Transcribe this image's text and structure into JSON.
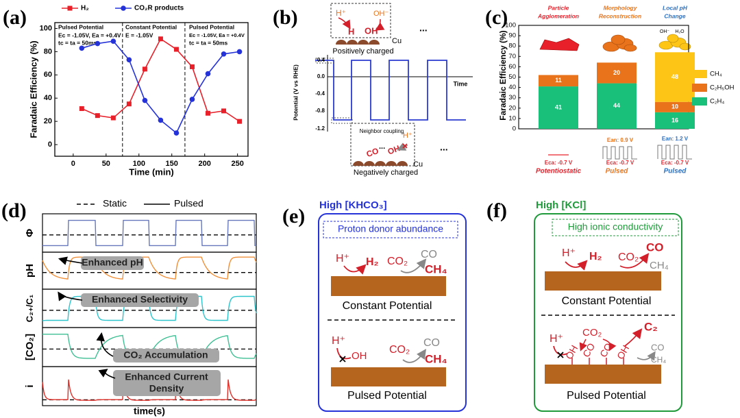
{
  "panel_labels": [
    "(a)",
    "(b)",
    "(c)",
    "(d)",
    "(e)",
    "(f)"
  ],
  "chart_data": [
    {
      "type": "line",
      "x_label": "Time (min)",
      "y_label": "Faradaic Efficiency (%)",
      "x": [
        13,
        37,
        61,
        85,
        109,
        133,
        157,
        181,
        205,
        229,
        253
      ],
      "series": [
        {
          "name": "H₂",
          "color": "#e8202a",
          "marker": "square",
          "values": [
            31,
            25,
            23,
            35,
            65,
            91,
            82,
            67,
            27,
            29,
            20
          ]
        },
        {
          "name": "CO₂R products",
          "color": "#2432d8",
          "marker": "circle",
          "values": [
            83,
            87,
            89,
            73,
            38,
            21,
            10,
            39,
            61,
            78,
            80
          ]
        }
      ],
      "xlim": [
        -28,
        266
      ],
      "xticks": [
        0,
        50,
        100,
        150,
        200,
        250
      ],
      "ylim": [
        -10,
        105
      ],
      "yticks": [
        0,
        20,
        40,
        60,
        80,
        100
      ],
      "vlines": [
        75,
        170
      ],
      "annotations": [
        "Pulsed Potential",
        "Ec = -1.05V, Ea = +0.4V",
        "tc = ta = 50ms",
        "Constant Potential",
        "E = -1.05V",
        "Pulsed Potential",
        "Ec = -1.05V, Ea = +0.4V",
        "tc = ta = 50ms"
      ]
    },
    {
      "type": "stacked_bar",
      "y_label": "Faradaic Efficiency (%)",
      "categories": [
        "Potentiostatic",
        "Pulsed",
        "Pulsed"
      ],
      "series": [
        {
          "name": "C₂H₄",
          "color": "#19c07a",
          "values": [
            41,
            44,
            16
          ]
        },
        {
          "name": "C₂H₅OH",
          "color": "#e8731b",
          "values": [
            11,
            20,
            10
          ]
        },
        {
          "name": "CH₄",
          "color": "#fdc516",
          "values": [
            0,
            0,
            48
          ]
        }
      ],
      "ylim": [
        0,
        100
      ],
      "yticks": [
        0,
        10,
        20,
        30,
        40,
        50,
        60,
        70,
        80,
        90,
        100
      ],
      "top_labels": [
        "Particle",
        "Agglomeration",
        "Morphology",
        "Reconstruction",
        "Local pH",
        "Change"
      ],
      "potentials": [
        "Eca: -0.7 V",
        "Ean: 0.9 V",
        "Eca: -0.7 V",
        "Ean: 1.2 V",
        "Eca: -0.7 V"
      ],
      "species": [
        "OH⁻",
        "H₂O"
      ]
    }
  ],
  "panel_b": {
    "y_label": "Potential (V vs RHE)",
    "ticks": [
      "0.4",
      "0.0",
      "-0.4",
      "-0.8",
      "-1.2"
    ],
    "x_label": "Time",
    "top_inset": {
      "labels": [
        "H⁺",
        "OH⁻",
        "H",
        "OH",
        "Cu"
      ],
      "caption": "Positively charged"
    },
    "bottom_inset": {
      "title": "Neighbor coupling",
      "labels": [
        "CO",
        "...",
        "OH",
        "H⁺",
        "Cu"
      ],
      "caption": "Negatively charged"
    },
    "ellipsis": "..."
  },
  "panel_d": {
    "legend": [
      "Static",
      "Pulsed"
    ],
    "rows": [
      "Φ",
      "pH",
      "C₂₊/C₁",
      "[CO₂]",
      "i"
    ],
    "callouts": [
      "Enhanced pH",
      "Enhanced Selectivity",
      "CO₂ Accumulation",
      "Enhanced Current",
      "Density"
    ],
    "x_label": "time(s)"
  },
  "panel_e": {
    "title": "High [KHCO₃]",
    "box": "Proton donor abundance",
    "constant": {
      "labels": [
        "H⁺",
        "H₂",
        "CO₂",
        "CO",
        "CH₄"
      ],
      "caption": "Constant Potential"
    },
    "pulsed": {
      "labels": [
        "H⁺",
        "OH",
        "CO₂",
        "CO",
        "CH₄"
      ],
      "caption": "Pulsed Potential"
    }
  },
  "panel_f": {
    "title": "High [KCl]",
    "box": "High ionic conductivity",
    "constant": {
      "labels": [
        "H⁺",
        "H₂",
        "CO₂",
        "CO",
        "CH₄"
      ],
      "caption": "Constant Potential"
    },
    "pulsed": {
      "labels": [
        "H⁺",
        "CO₂",
        "C₂",
        "OH",
        "CO",
        "CO",
        "OH",
        "CO",
        "CH₄"
      ],
      "caption": "Pulsed Potential"
    }
  }
}
